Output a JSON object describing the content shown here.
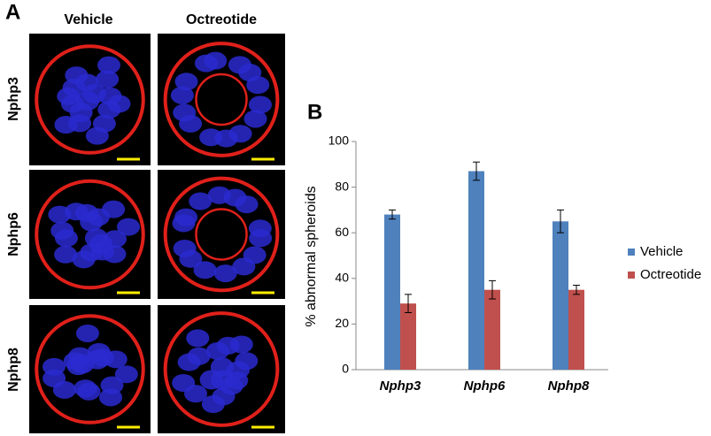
{
  "panel_a": {
    "label": "A",
    "columns": [
      "Vehicle",
      "Octreotide"
    ],
    "rows": [
      "Nphp3",
      "Nphp6",
      "Nphp8"
    ]
  },
  "chart_data": {
    "type": "bar",
    "panel_label": "B",
    "y_label": "% abnormal spheroids",
    "categories": [
      "Nphp3",
      "Nphp6",
      "Nphp8"
    ],
    "series": [
      {
        "name": "Vehicle",
        "color": "#4f81bd",
        "values": [
          68,
          87,
          65
        ],
        "errors": [
          2,
          4,
          5
        ]
      },
      {
        "name": "Octreotide",
        "color": "#c0504d",
        "values": [
          29,
          35,
          35
        ],
        "errors": [
          4,
          4,
          2
        ]
      }
    ],
    "ylim": [
      0,
      100
    ],
    "yticks": [
      0,
      20,
      40,
      60,
      80,
      100
    ],
    "legend": "right"
  }
}
